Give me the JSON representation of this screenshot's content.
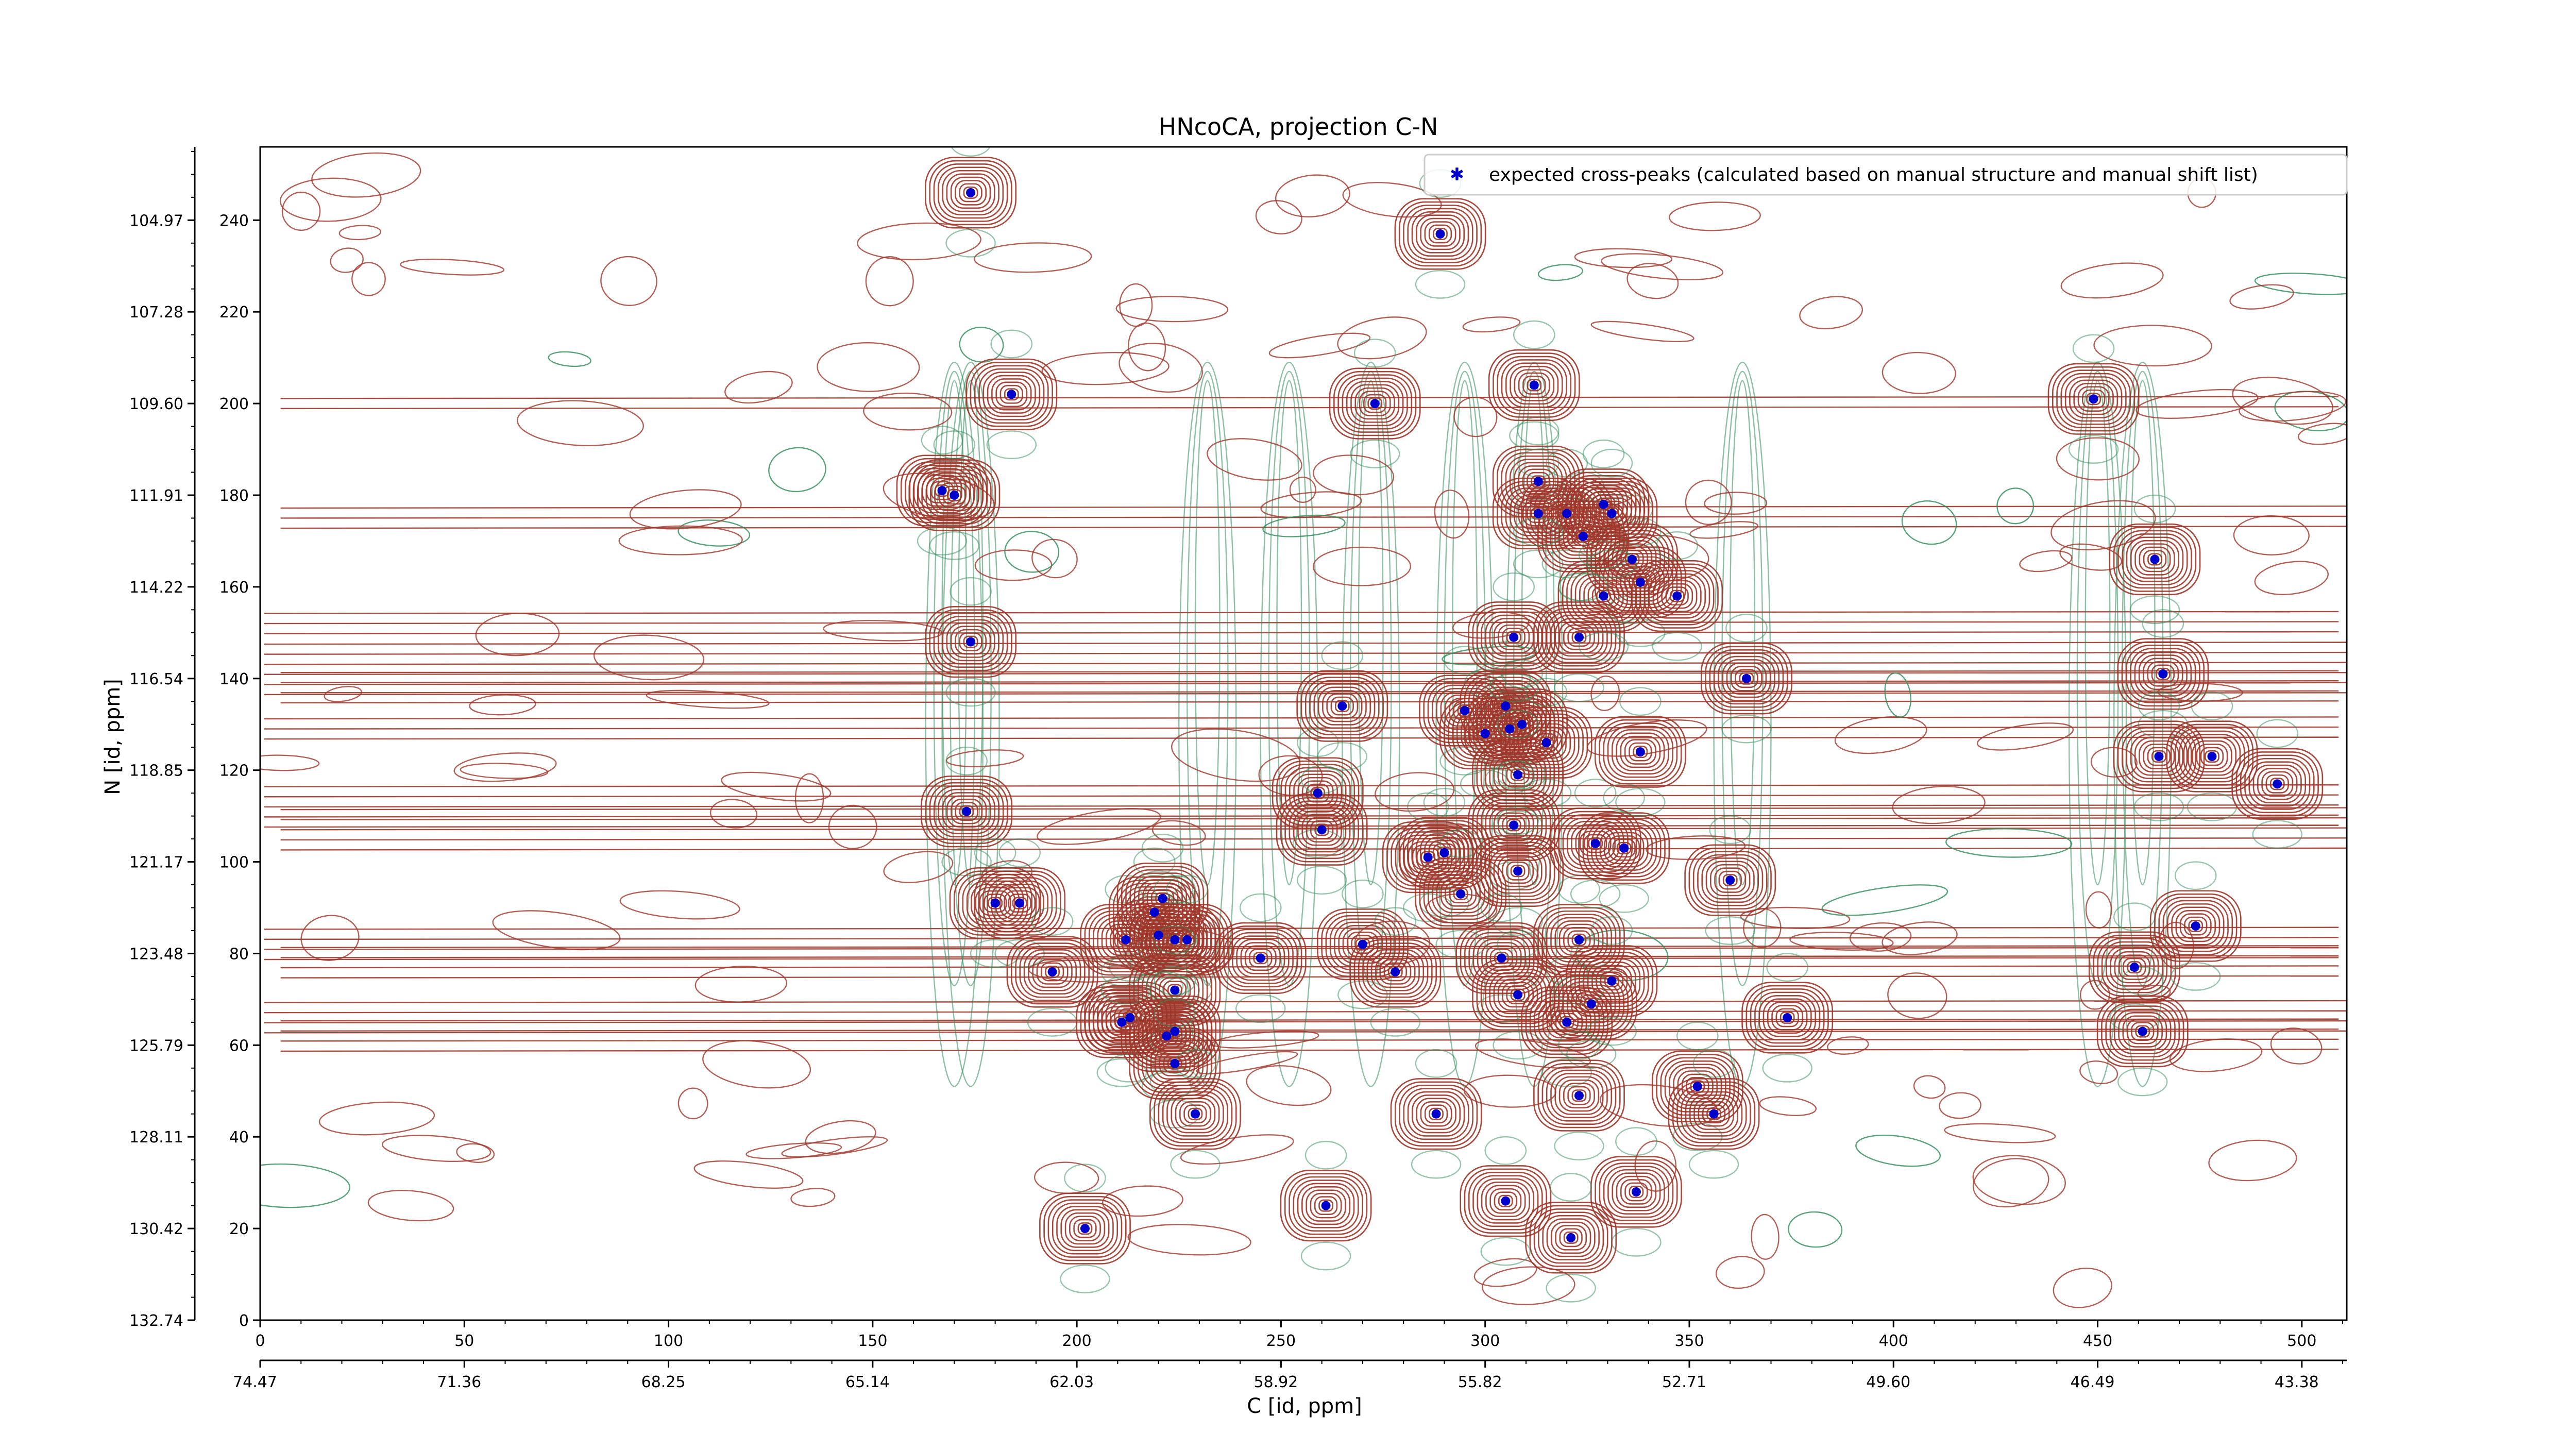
{
  "chart_data": {
    "type": "scatter",
    "title": "HNcoCA, projection C-N",
    "xlabel": "C [id, ppm]",
    "ylabel": "N [id, ppm]",
    "xlim": [
      0,
      511
    ],
    "ylim": [
      0,
      256
    ],
    "x_ticks_index": [
      "0",
      "50",
      "100",
      "150",
      "200",
      "250",
      "300",
      "350",
      "400",
      "450",
      "500"
    ],
    "x_ticks_ppm": [
      "74.47",
      "71.36",
      "68.25",
      "65.14",
      "62.03",
      "58.92",
      "55.82",
      "52.71",
      "49.60",
      "46.49",
      "43.38"
    ],
    "y_ticks_index": [
      "0",
      "20",
      "40",
      "60",
      "80",
      "100",
      "120",
      "140",
      "160",
      "180",
      "200",
      "220",
      "240"
    ],
    "y_ticks_ppm": [
      "132.74",
      "130.42",
      "128.11",
      "125.79",
      "123.48",
      "121.17",
      "118.85",
      "116.54",
      "114.22",
      "111.91",
      "109.60",
      "107.28",
      "104.97"
    ],
    "legend": {
      "label": "expected cross-peaks (calculated based on manual structure and manual shift list)",
      "position": "top-right"
    },
    "grid": false,
    "colors": {
      "positive_contour": "#a0362a",
      "negative_contour": "#2e8b57",
      "peak_marker": "#0000cc"
    },
    "series": [
      {
        "name": "expected cross-peaks (calculated based on manual structure and manual shift list)",
        "points": [
          [
            174,
            246
          ],
          [
            184,
            202
          ],
          [
            167,
            181
          ],
          [
            170,
            180
          ],
          [
            174,
            148
          ],
          [
            173,
            111
          ],
          [
            180,
            91
          ],
          [
            186,
            91
          ],
          [
            194,
            76
          ],
          [
            211,
            65
          ],
          [
            213,
            66
          ],
          [
            212,
            83
          ],
          [
            219,
            89
          ],
          [
            220,
            84
          ],
          [
            221,
            92
          ],
          [
            224,
            83
          ],
          [
            227,
            83
          ],
          [
            224,
            72
          ],
          [
            222,
            62
          ],
          [
            224,
            63
          ],
          [
            224,
            56
          ],
          [
            229,
            45
          ],
          [
            202,
            20
          ],
          [
            245,
            79
          ],
          [
            261,
            25
          ],
          [
            259,
            115
          ],
          [
            260,
            107
          ],
          [
            265,
            134
          ],
          [
            270,
            82
          ],
          [
            278,
            76
          ],
          [
            273,
            200
          ],
          [
            289,
            237
          ],
          [
            286,
            101
          ],
          [
            290,
            102
          ],
          [
            294,
            93
          ],
          [
            295,
            133
          ],
          [
            300,
            128
          ],
          [
            305,
            134
          ],
          [
            306,
            129
          ],
          [
            309,
            130
          ],
          [
            315,
            126
          ],
          [
            308,
            119
          ],
          [
            307,
            108
          ],
          [
            308,
            98
          ],
          [
            288,
            45
          ],
          [
            304,
            79
          ],
          [
            308,
            71
          ],
          [
            305,
            26
          ],
          [
            320,
            65
          ],
          [
            326,
            69
          ],
          [
            323,
            83
          ],
          [
            331,
            74
          ],
          [
            334,
            103
          ],
          [
            327,
            104
          ],
          [
            307,
            149
          ],
          [
            323,
            149
          ],
          [
            329,
            158
          ],
          [
            336,
            166
          ],
          [
            338,
            161
          ],
          [
            313,
            176
          ],
          [
            320,
            176
          ],
          [
            324,
            171
          ],
          [
            329,
            178
          ],
          [
            331,
            176
          ],
          [
            313,
            183
          ],
          [
            312,
            204
          ],
          [
            338,
            124
          ],
          [
            347,
            158
          ],
          [
            352,
            51
          ],
          [
            356,
            45
          ],
          [
            360,
            96
          ],
          [
            364,
            140
          ],
          [
            374,
            66
          ],
          [
            337,
            28
          ],
          [
            323,
            49
          ],
          [
            321,
            18
          ],
          [
            449,
            201
          ],
          [
            459,
            77
          ],
          [
            461,
            63
          ],
          [
            464,
            166
          ],
          [
            466,
            141
          ],
          [
            465,
            123
          ],
          [
            478,
            123
          ],
          [
            474,
            86
          ],
          [
            494,
            117
          ]
        ]
      }
    ]
  }
}
